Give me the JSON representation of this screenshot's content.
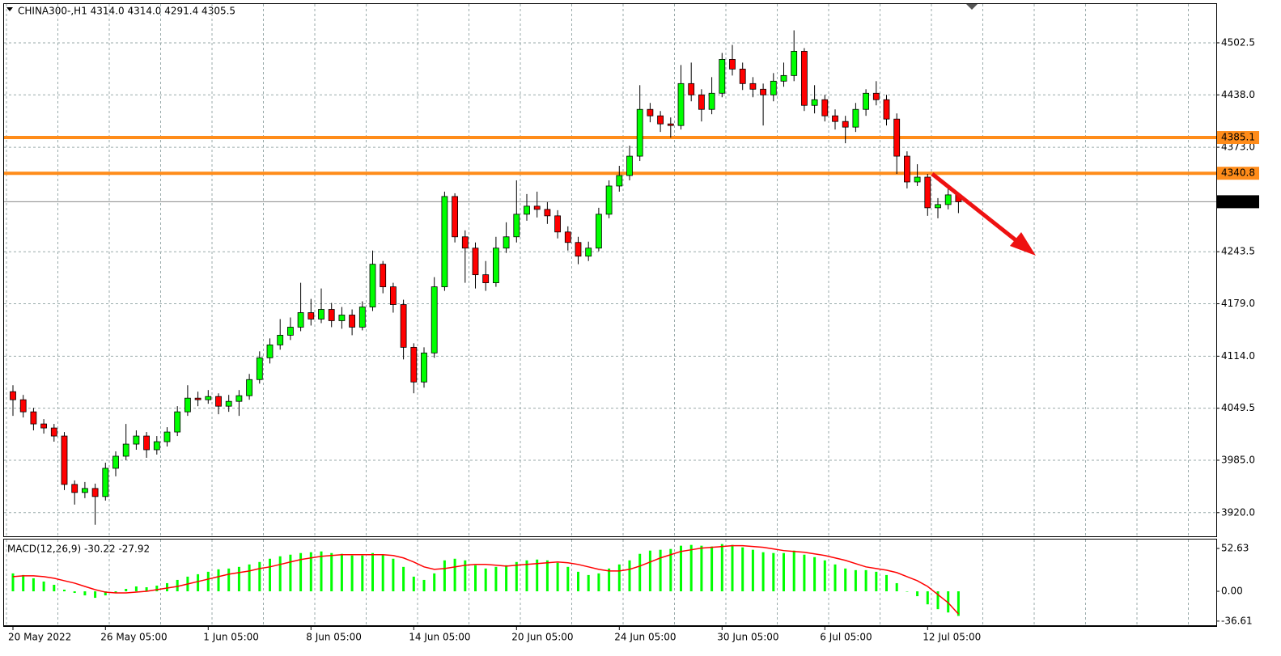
{
  "chart_data": [
    {
      "type": "candlestick",
      "title": "CHINA300-,H1  4314.0 4314.0 4291.4 4305.5",
      "xticks": [
        {
          "value": 0,
          "label": "20 May 2022"
        },
        {
          "value": 9,
          "label": "26 May 05:00"
        },
        {
          "value": 19,
          "label": "1 Jun 05:00"
        },
        {
          "value": 29,
          "label": "8 Jun 05:00"
        },
        {
          "value": 39,
          "label": "14 Jun 05:00"
        },
        {
          "value": 49,
          "label": "20 Jun 05:00"
        },
        {
          "value": 59,
          "label": "24 Jun 05:00"
        },
        {
          "value": 69,
          "label": "30 Jun 05:00"
        },
        {
          "value": 79,
          "label": "6 Jul 05:00"
        },
        {
          "value": 89,
          "label": "12 Jul 05:00"
        }
      ],
      "open": [
        4070,
        4060,
        4045,
        4030,
        4025,
        4015,
        3955,
        3945,
        3950,
        3940,
        3975,
        3990,
        4005,
        4015,
        3998,
        4008,
        4020,
        4045,
        4062,
        4060,
        4064,
        4052,
        4058,
        4065,
        4085,
        4112,
        4128,
        4140,
        4150,
        4168,
        4160,
        4172,
        4158,
        4165,
        4150,
        4175,
        4228,
        4200,
        4178,
        4125,
        4082,
        4118,
        4200,
        4312,
        4262,
        4248,
        4215,
        4205,
        4248,
        4262,
        4290,
        4300,
        4296,
        4288,
        4268,
        4255,
        4238,
        4248,
        4290,
        4325,
        4338,
        4362,
        4420,
        4412,
        4402,
        4400,
        4452,
        4438,
        4420,
        4440,
        4482,
        4470,
        4452,
        4445,
        4438,
        4455,
        4462,
        4492,
        4425,
        4432,
        4412,
        4405,
        4398,
        4420,
        4440,
        4432,
        4408,
        4362,
        4330,
        4336,
        4298,
        4302,
        4314.0
      ],
      "high": [
        4078,
        4066,
        4050,
        4036,
        4030,
        4020,
        3960,
        3958,
        3956,
        3982,
        3996,
        4030,
        4022,
        4020,
        4015,
        4026,
        4052,
        4078,
        4070,
        4072,
        4068,
        4066,
        4072,
        4092,
        4120,
        4136,
        4160,
        4162,
        4205,
        4185,
        4198,
        4180,
        4175,
        4172,
        4182,
        4245,
        4232,
        4205,
        4184,
        4130,
        4125,
        4212,
        4318,
        4316,
        4270,
        4255,
        4232,
        4262,
        4280,
        4332,
        4315,
        4318,
        4305,
        4295,
        4275,
        4262,
        4256,
        4298,
        4332,
        4350,
        4375,
        4450,
        4428,
        4418,
        4410,
        4475,
        4478,
        4445,
        4460,
        4490,
        4500,
        4478,
        4460,
        4452,
        4465,
        4478,
        4518,
        4496,
        4450,
        4438,
        4420,
        4412,
        4428,
        4445,
        4455,
        4438,
        4415,
        4368,
        4352,
        4340,
        4310,
        4322,
        4314.0
      ],
      "low": [
        4040,
        4038,
        4022,
        4018,
        4008,
        3948,
        3930,
        3938,
        3905,
        3935,
        3965,
        3985,
        3998,
        3988,
        3992,
        4002,
        4015,
        4040,
        4052,
        4055,
        4042,
        4045,
        4040,
        4060,
        4080,
        4105,
        4122,
        4134,
        4145,
        4152,
        4155,
        4150,
        4148,
        4140,
        4146,
        4170,
        4192,
        4168,
        4110,
        4068,
        4075,
        4112,
        4195,
        4255,
        4205,
        4198,
        4195,
        4200,
        4242,
        4255,
        4282,
        4286,
        4278,
        4260,
        4245,
        4228,
        4232,
        4244,
        4285,
        4318,
        4332,
        4356,
        4404,
        4392,
        4385,
        4395,
        4430,
        4405,
        4414,
        4435,
        4462,
        4444,
        4435,
        4400,
        4430,
        4448,
        4455,
        4418,
        4415,
        4405,
        4395,
        4378,
        4392,
        4412,
        4425,
        4400,
        4340,
        4322,
        4325,
        4288,
        4285,
        4296,
        4291.4
      ],
      "close": [
        4060,
        4045,
        4030,
        4025,
        4015,
        3955,
        3945,
        3950,
        3940,
        3975,
        3990,
        4005,
        4015,
        3998,
        4008,
        4020,
        4045,
        4062,
        4060,
        4064,
        4052,
        4058,
        4065,
        4085,
        4112,
        4128,
        4140,
        4150,
        4168,
        4160,
        4172,
        4158,
        4165,
        4150,
        4175,
        4228,
        4200,
        4178,
        4125,
        4082,
        4118,
        4200,
        4312,
        4262,
        4248,
        4215,
        4205,
        4248,
        4262,
        4290,
        4300,
        4296,
        4288,
        4268,
        4255,
        4238,
        4248,
        4290,
        4325,
        4338,
        4362,
        4420,
        4412,
        4402,
        4400,
        4452,
        4438,
        4420,
        4440,
        4482,
        4470,
        4452,
        4445,
        4438,
        4455,
        4462,
        4492,
        4425,
        4432,
        4412,
        4405,
        4398,
        4420,
        4440,
        4432,
        4408,
        4362,
        4330,
        4336,
        4298,
        4302,
        4314.0,
        4305.5
      ],
      "up_color": "#00ff00",
      "down_color": "#ff0000",
      "ylim": [
        3890.7,
        4550.6
      ],
      "yticks": [
        4502.5,
        {
          "value": 4438,
          "label": "4438.0"
        },
        {
          "value": 4373,
          "label": "4373.0"
        },
        4243.5,
        {
          "value": 4179,
          "label": "4179.0"
        },
        {
          "value": 4114,
          "label": "4114.0"
        },
        4049.5,
        {
          "value": 3985,
          "label": "3985.0"
        },
        {
          "value": 3920,
          "label": "3920.0"
        }
      ],
      "levels": [
        {
          "value": 4385.1,
          "color": "#ff8c1a"
        },
        {
          "value": 4340.8,
          "color": "#ff8c1a"
        }
      ],
      "current_price": 4305.5,
      "grid": true
    },
    {
      "type": "macd",
      "title": "MACD(12,26,9) -30.22 -27.92",
      "histogram": {
        "color": "#00ff00",
        "values": [
          22,
          20,
          16,
          12,
          8,
          2,
          -2,
          -5,
          -8,
          -5,
          -2,
          3,
          6,
          5,
          7,
          10,
          14,
          18,
          21,
          24,
          27,
          28,
          30,
          33,
          36,
          40,
          43,
          45,
          47,
          48,
          49,
          47,
          46,
          44,
          44,
          47,
          45,
          40,
          30,
          18,
          14,
          22,
          38,
          40,
          38,
          32,
          28,
          30,
          32,
          36,
          38,
          39,
          38,
          35,
          30,
          24,
          20,
          22,
          28,
          33,
          38,
          46,
          50,
          51,
          52,
          56,
          57,
          56,
          55,
          58,
          57,
          54,
          51,
          48,
          47,
          47,
          50,
          45,
          42,
          38,
          33,
          28,
          26,
          26,
          24,
          20,
          10,
          0,
          -6,
          -16,
          -22,
          -26,
          -30.22
        ]
      },
      "signal": {
        "color": "#ff0000",
        "values": [
          18,
          19,
          19,
          18,
          16,
          13,
          10,
          6,
          2,
          -1,
          -2,
          -2,
          -1,
          0,
          2,
          4,
          6,
          9,
          12,
          15,
          18,
          21,
          23,
          25,
          28,
          30,
          33,
          36,
          39,
          41,
          43,
          44,
          45,
          45,
          45,
          45,
          45,
          44,
          41,
          36,
          30,
          27,
          28,
          30,
          32,
          33,
          33,
          32,
          31,
          32,
          33,
          34,
          35,
          36,
          35,
          33,
          30,
          27,
          25,
          25,
          27,
          31,
          36,
          41,
          45,
          49,
          51,
          53,
          54,
          55,
          56,
          56,
          55,
          54,
          52,
          50,
          49,
          48,
          46,
          44,
          41,
          38,
          34,
          30,
          28,
          26,
          23,
          18,
          13,
          6,
          -4,
          -14,
          -27.92
        ]
      },
      "ylim": [
        -41.7,
        63.6
      ],
      "yticks": [
        52.63,
        {
          "value": 0,
          "label": "0.00"
        },
        -36.61
      ]
    }
  ]
}
